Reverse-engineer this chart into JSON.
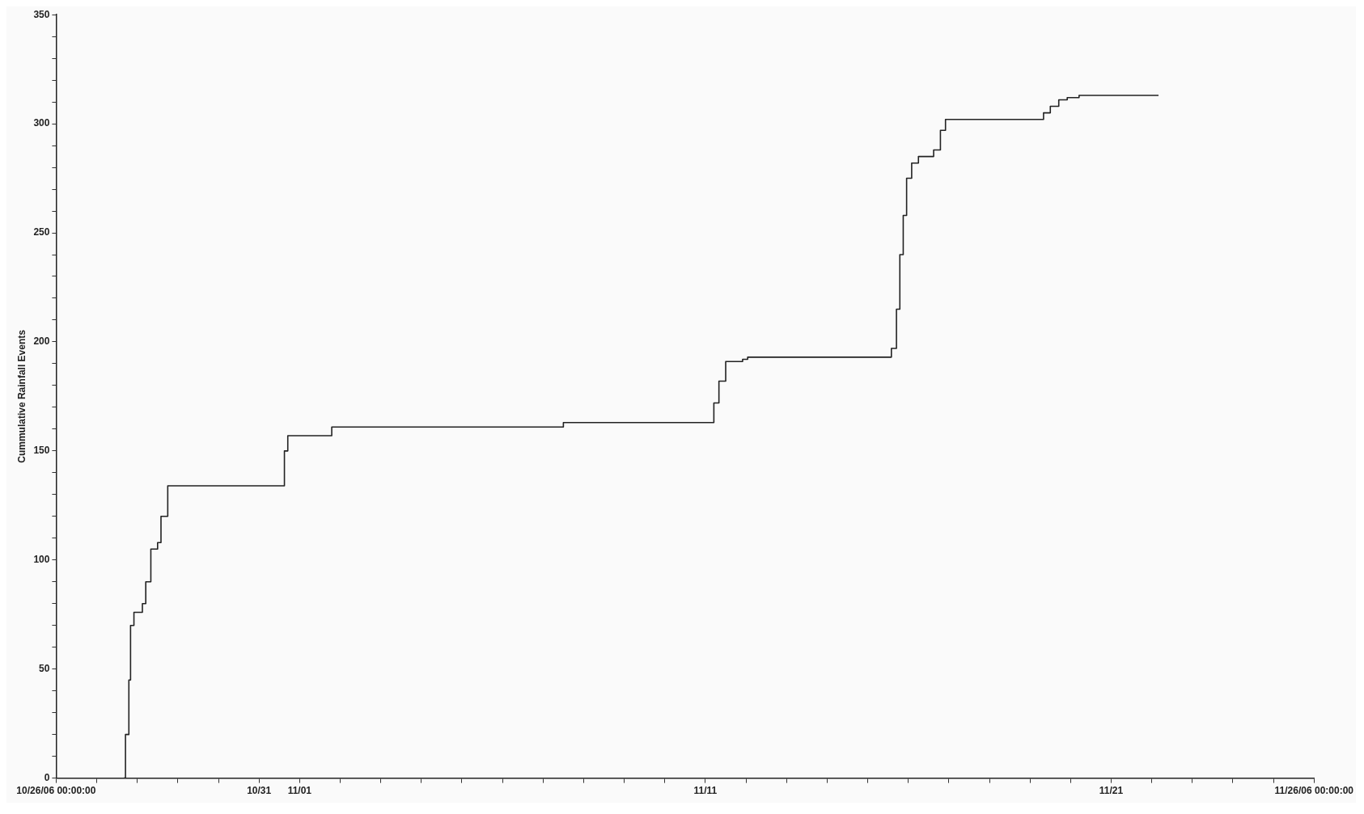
{
  "chart_data": {
    "type": "step",
    "ylabel": "Cummulative Rainfall Events",
    "x": [
      "--10-27T16:00",
      "--10-27T17:00",
      "--10-27T19:00",
      "--10-27T20:00",
      "--10-27T22:00",
      "--10-28T03:00",
      "--10-28T05:00",
      "--10-28T08:00",
      "--10-28T12:00",
      "--10-28T14:00",
      "--10-28T18:00",
      "--10-31T15:00",
      "--10-31T17:00",
      "--11-01T19:00",
      "--11-07T12:00",
      "--11-11T05:00",
      "--11-11T08:00",
      "--11-11T12:00",
      "--11-11T22:00",
      "--11-12T01:00",
      "--11-15T14:00",
      "--11-15T17:00",
      "--11-15T19:00",
      "--11-15T21:00",
      "--11-15T23:00",
      "--11-16T02:00",
      "--11-16T06:00",
      "--11-16T15:00",
      "--11-16T19:00",
      "--11-16T22:00",
      "--11-19T08:00",
      "--11-19T12:00",
      "--11-19T17:00",
      "--11-19T22:00",
      "--11-20T05:00",
      "--11-22T04:00"
    ],
    "series": [
      {
        "color": "#222222",
        "values": [
          0,
          20,
          45,
          70,
          76,
          80,
          90,
          105,
          108,
          120,
          134,
          150,
          157,
          161,
          163,
          172,
          182,
          191,
          192,
          193,
          197,
          215,
          240,
          258,
          275,
          282,
          285,
          288,
          297,
          302,
          305,
          308,
          311,
          312,
          313,
          313
        ]
      }
    ],
    "xlim": [
      "--10-26T00:00",
      "--11-26T00:00"
    ],
    "xticks": [
      {
        "value": "--10-26T00:00",
        "label": "10/26/06 00:00:00"
      },
      {
        "value": "--10-27T00:00",
        "label": null
      },
      {
        "value": "--10-28T00:00",
        "label": null
      },
      {
        "value": "--10-29T00:00",
        "label": null
      },
      {
        "value": "--10-30T00:00",
        "label": null
      },
      {
        "value": "--10-31T00:00",
        "label": "10/31"
      },
      {
        "value": "--11-01T00:00",
        "label": "11/01"
      },
      {
        "value": "--11-02T00:00",
        "label": null
      },
      {
        "value": "--11-03T00:00",
        "label": null
      },
      {
        "value": "--11-04T00:00",
        "label": null
      },
      {
        "value": "--11-05T00:00",
        "label": null
      },
      {
        "value": "--11-06T00:00",
        "label": null
      },
      {
        "value": "--11-07T00:00",
        "label": null
      },
      {
        "value": "--11-08T00:00",
        "label": null
      },
      {
        "value": "--11-09T00:00",
        "label": null
      },
      {
        "value": "--11-10T00:00",
        "label": null
      },
      {
        "value": "--11-11T00:00",
        "label": "11/11"
      },
      {
        "value": "--11-12T00:00",
        "label": null
      },
      {
        "value": "--11-13T00:00",
        "label": null
      },
      {
        "value": "--11-14T00:00",
        "label": null
      },
      {
        "value": "--11-15T00:00",
        "label": null
      },
      {
        "value": "--11-16T00:00",
        "label": null
      },
      {
        "value": "--11-17T00:00",
        "label": null
      },
      {
        "value": "--11-18T00:00",
        "label": null
      },
      {
        "value": "--11-19T00:00",
        "label": null
      },
      {
        "value": "--11-20T00:00",
        "label": null
      },
      {
        "value": "--11-21T00:00",
        "label": "11/21"
      },
      {
        "value": "--11-22T00:00",
        "label": null
      },
      {
        "value": "--11-23T00:00",
        "label": null
      },
      {
        "value": "--11-24T00:00",
        "label": null
      },
      {
        "value": "--11-25T00:00",
        "label": null
      },
      {
        "value": "--11-26T00:00",
        "label": "11/26/06 00:00:00"
      }
    ],
    "ylim": [
      0,
      350
    ],
    "yticks": [
      0,
      {
        "value": 10,
        "label": null
      },
      {
        "value": 20,
        "label": null
      },
      {
        "value": 30,
        "label": null
      },
      {
        "value": 40,
        "label": null
      },
      50,
      {
        "value": 60,
        "label": null
      },
      {
        "value": 70,
        "label": null
      },
      {
        "value": 80,
        "label": null
      },
      {
        "value": 90,
        "label": null
      },
      100,
      {
        "value": 110,
        "label": null
      },
      {
        "value": 120,
        "label": null
      },
      {
        "value": 130,
        "label": null
      },
      {
        "value": 140,
        "label": null
      },
      150,
      {
        "value": 160,
        "label": null
      },
      {
        "value": 170,
        "label": null
      },
      {
        "value": 180,
        "label": null
      },
      {
        "value": 190,
        "label": null
      },
      200,
      {
        "value": 210,
        "label": null
      },
      {
        "value": 220,
        "label": null
      },
      {
        "value": 230,
        "label": null
      },
      {
        "value": 240,
        "label": null
      },
      250,
      {
        "value": 260,
        "label": null
      },
      {
        "value": 270,
        "label": null
      },
      {
        "value": 280,
        "label": null
      },
      {
        "value": 290,
        "label": null
      },
      300,
      {
        "value": 310,
        "label": null
      },
      {
        "value": 320,
        "label": null
      },
      {
        "value": 330,
        "label": null
      },
      {
        "value": 340,
        "label": null
      },
      350
    ],
    "grid": false,
    "legend": false
  }
}
